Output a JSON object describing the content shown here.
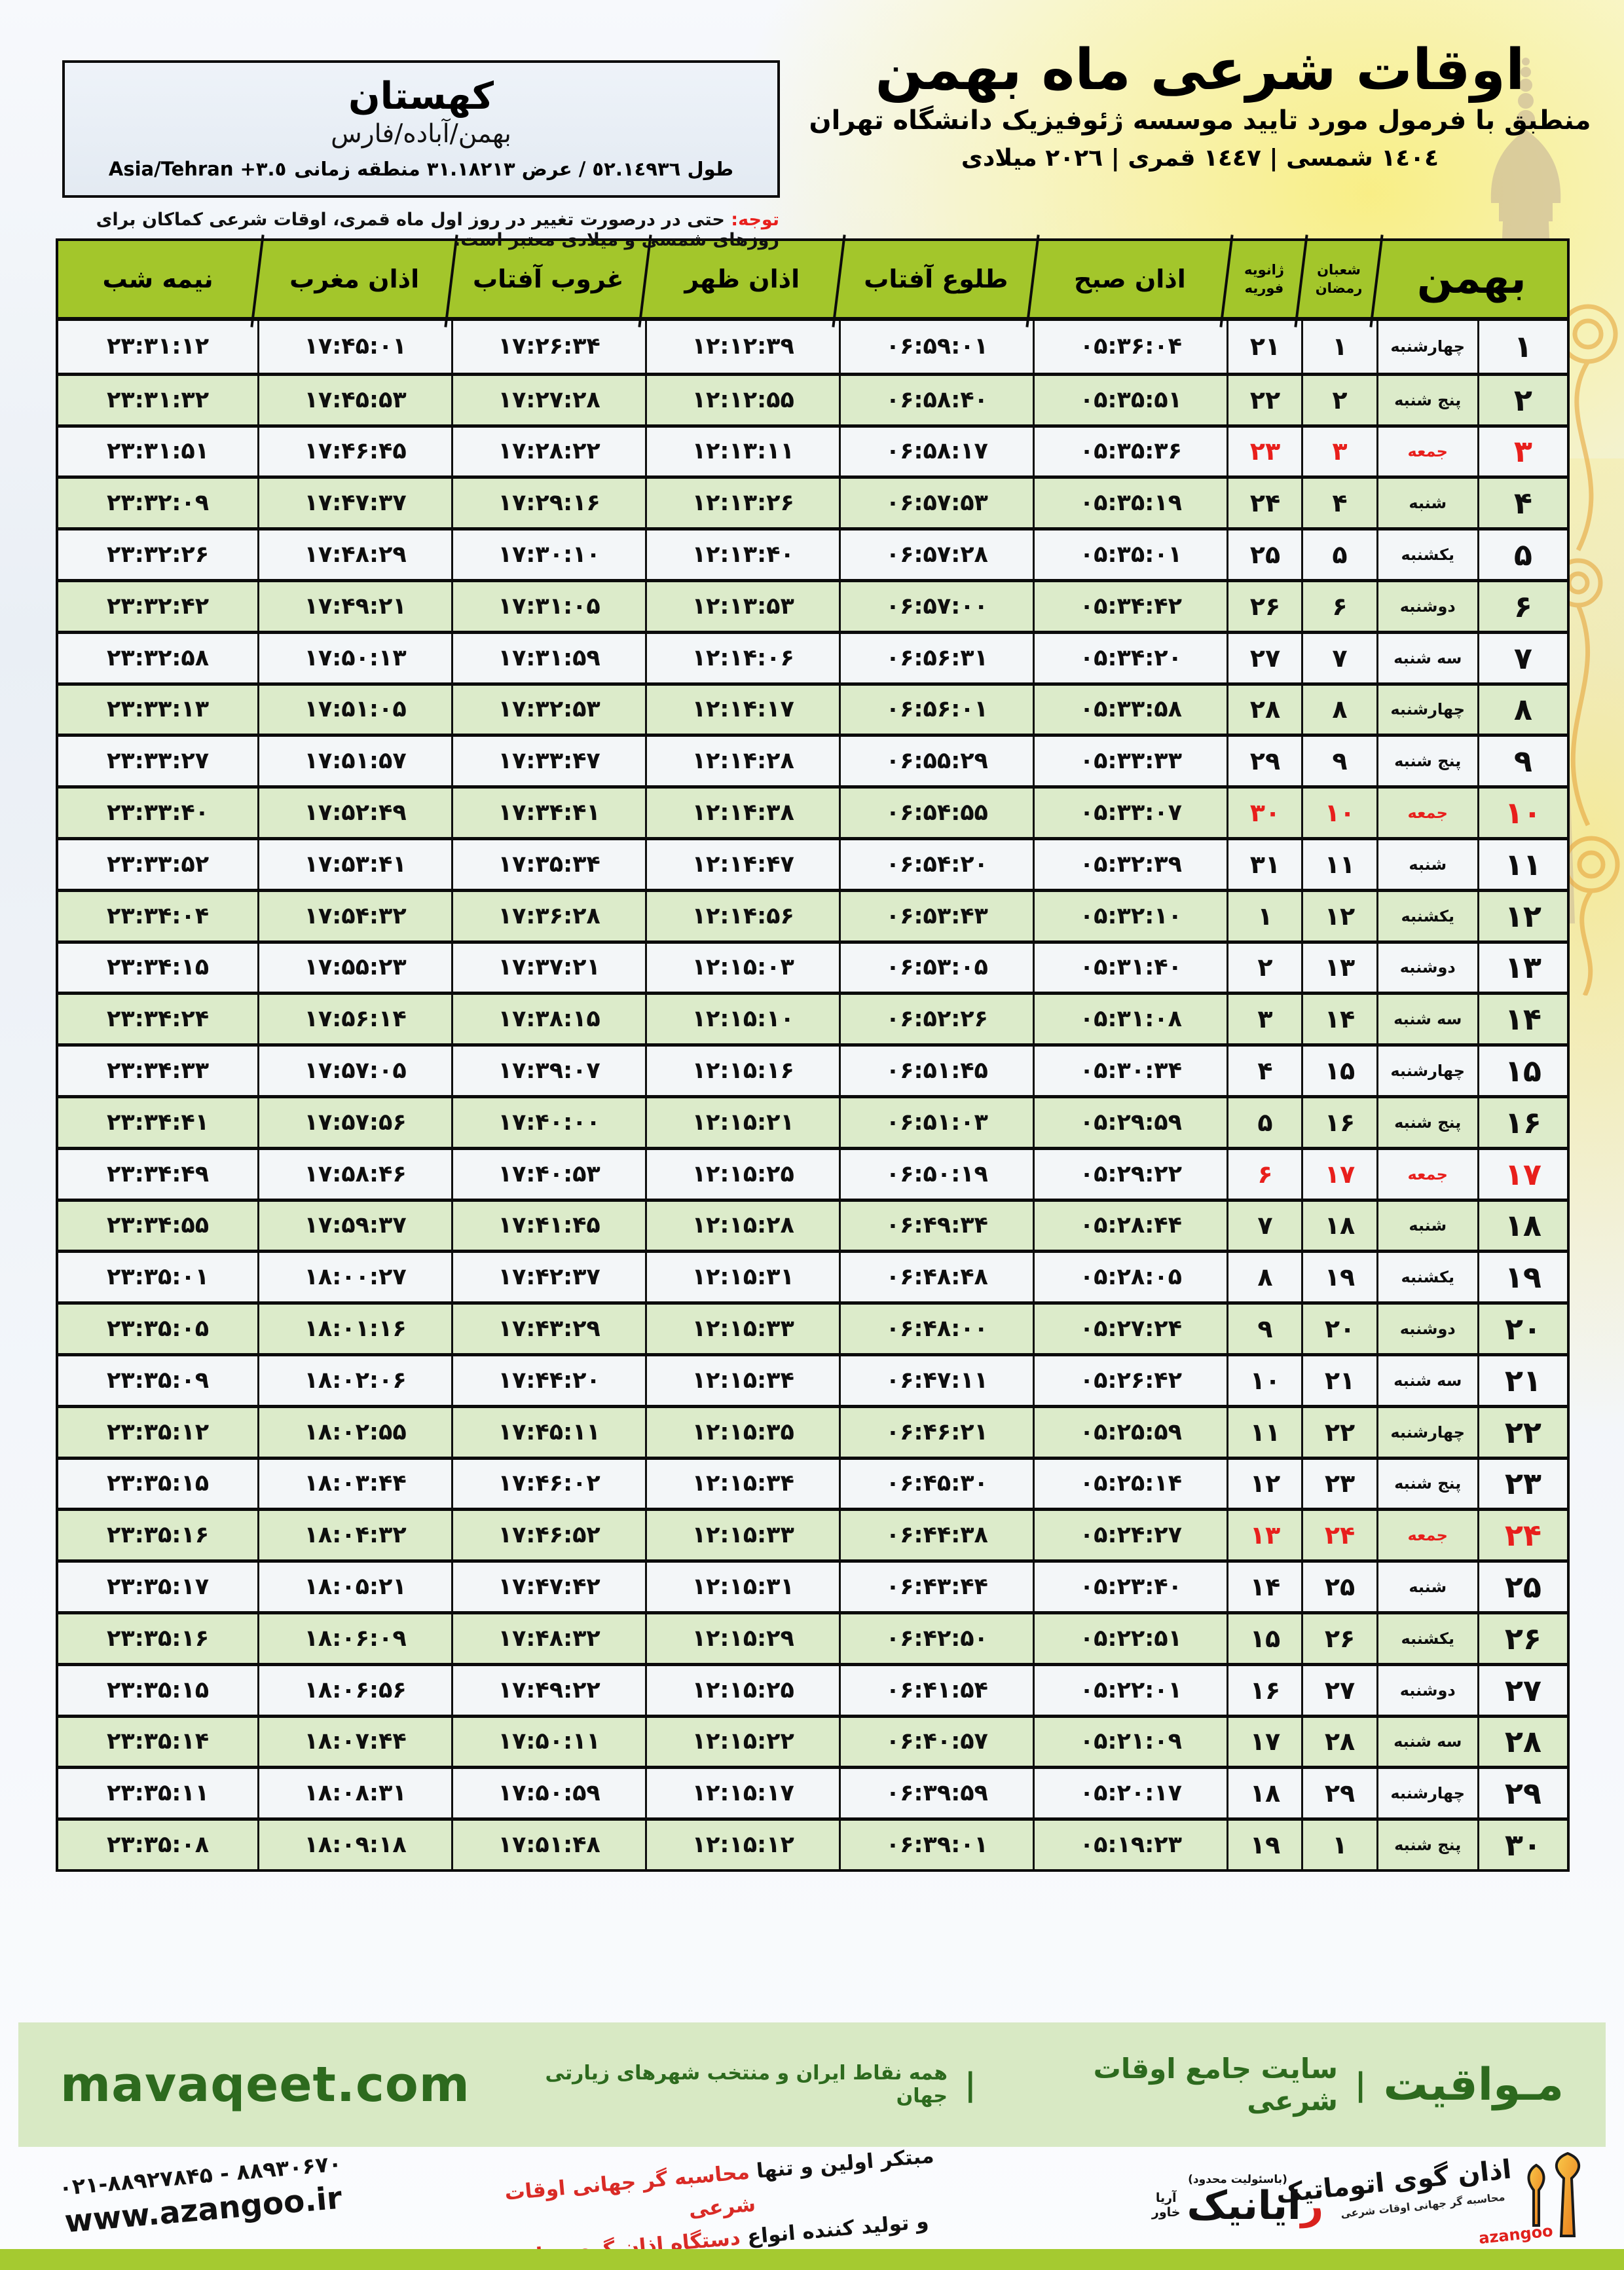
{
  "colors": {
    "header_green": "#a3c62b",
    "row_green": "#dcebca",
    "row_white": "#f3f6f8",
    "friday_red": "#e81f1c",
    "band_green": "#d8e9c4",
    "band_text": "#2d6a1e",
    "bottom_bar": "#a5ca30",
    "accent_red": "#d92b26"
  },
  "location": {
    "name": "کهستان",
    "region": "بهمن/آباده/فارس",
    "coords": "طول ٥٢.١٤٩٣٦ / عرض ٣١.١٨٢١٣ منطقه زمانی",
    "timezone": "Asia/Tehran +٣.٥"
  },
  "header": {
    "title": "اوقات شرعی ماه بهمن",
    "subtitle": "منطبق با فرمول مورد تایید موسسه ژئوفیزیک دانشگاه تهران",
    "years": "١٤٠٤ شمسی | ١٤٤٧ قمری | ٢٠٢٦ میلادی"
  },
  "note": {
    "label": "توجه:",
    "text": "حتی در درصورت تغییر در روز اول ماه قمری، اوقات شرعی کماکان برای روزهای شمسی و میلادی معتبر است."
  },
  "table": {
    "headers": {
      "midnight": "نیمه شب",
      "maghrib": "اذان مغرب",
      "sunset": "غروب آفتاب",
      "dhuhr": "اذان ظهر",
      "sunrise": "طلوع آفتاب",
      "fajr": "اذان صبح",
      "jan": "ژانویه",
      "feb": "فوریه",
      "shaban": "شعبان",
      "ramadan": "رمضان",
      "month": "بهمن"
    },
    "rows": [
      {
        "day": "۱",
        "weekday": "چهارشنبه",
        "shaban": "۱",
        "jan_feb": "۲۱",
        "fajr": "۰۵:۳۶:۰۴",
        "sunrise": "۰۶:۵۹:۰۱",
        "dhuhr": "۱۲:۱۲:۳۹",
        "sunset": "۱۷:۲۶:۳۴",
        "maghrib": "۱۷:۴۵:۰۱",
        "midnight": "۲۳:۳۱:۱۲"
      },
      {
        "day": "۲",
        "weekday": "پنج شنبه",
        "shaban": "۲",
        "jan_feb": "۲۲",
        "fajr": "۰۵:۳۵:۵۱",
        "sunrise": "۰۶:۵۸:۴۰",
        "dhuhr": "۱۲:۱۲:۵۵",
        "sunset": "۱۷:۲۷:۲۸",
        "maghrib": "۱۷:۴۵:۵۳",
        "midnight": "۲۳:۳۱:۳۲"
      },
      {
        "day": "۳",
        "weekday": "جمعه",
        "shaban": "۳",
        "jan_feb": "۲۳",
        "fajr": "۰۵:۳۵:۳۶",
        "sunrise": "۰۶:۵۸:۱۷",
        "dhuhr": "۱۲:۱۳:۱۱",
        "sunset": "۱۷:۲۸:۲۲",
        "maghrib": "۱۷:۴۶:۴۵",
        "midnight": "۲۳:۳۱:۵۱"
      },
      {
        "day": "۴",
        "weekday": "شنبه",
        "shaban": "۴",
        "jan_feb": "۲۴",
        "fajr": "۰۵:۳۵:۱۹",
        "sunrise": "۰۶:۵۷:۵۳",
        "dhuhr": "۱۲:۱۳:۲۶",
        "sunset": "۱۷:۲۹:۱۶",
        "maghrib": "۱۷:۴۷:۳۷",
        "midnight": "۲۳:۳۲:۰۹"
      },
      {
        "day": "۵",
        "weekday": "یکشنبه",
        "shaban": "۵",
        "jan_feb": "۲۵",
        "fajr": "۰۵:۳۵:۰۱",
        "sunrise": "۰۶:۵۷:۲۸",
        "dhuhr": "۱۲:۱۳:۴۰",
        "sunset": "۱۷:۳۰:۱۰",
        "maghrib": "۱۷:۴۸:۲۹",
        "midnight": "۲۳:۳۲:۲۶"
      },
      {
        "day": "۶",
        "weekday": "دوشنبه",
        "shaban": "۶",
        "jan_feb": "۲۶",
        "fajr": "۰۵:۳۴:۴۲",
        "sunrise": "۰۶:۵۷:۰۰",
        "dhuhr": "۱۲:۱۳:۵۳",
        "sunset": "۱۷:۳۱:۰۵",
        "maghrib": "۱۷:۴۹:۲۱",
        "midnight": "۲۳:۳۲:۴۲"
      },
      {
        "day": "۷",
        "weekday": "سه شنبه",
        "shaban": "۷",
        "jan_feb": "۲۷",
        "fajr": "۰۵:۳۴:۲۰",
        "sunrise": "۰۶:۵۶:۳۱",
        "dhuhr": "۱۲:۱۴:۰۶",
        "sunset": "۱۷:۳۱:۵۹",
        "maghrib": "۱۷:۵۰:۱۳",
        "midnight": "۲۳:۳۲:۵۸"
      },
      {
        "day": "۸",
        "weekday": "چهارشنبه",
        "shaban": "۸",
        "jan_feb": "۲۸",
        "fajr": "۰۵:۳۳:۵۸",
        "sunrise": "۰۶:۵۶:۰۱",
        "dhuhr": "۱۲:۱۴:۱۷",
        "sunset": "۱۷:۳۲:۵۳",
        "maghrib": "۱۷:۵۱:۰۵",
        "midnight": "۲۳:۳۳:۱۳"
      },
      {
        "day": "۹",
        "weekday": "پنج شنبه",
        "shaban": "۹",
        "jan_feb": "۲۹",
        "fajr": "۰۵:۳۳:۳۳",
        "sunrise": "۰۶:۵۵:۲۹",
        "dhuhr": "۱۲:۱۴:۲۸",
        "sunset": "۱۷:۳۳:۴۷",
        "maghrib": "۱۷:۵۱:۵۷",
        "midnight": "۲۳:۳۳:۲۷"
      },
      {
        "day": "۱۰",
        "weekday": "جمعه",
        "shaban": "۱۰",
        "jan_feb": "۳۰",
        "fajr": "۰۵:۳۳:۰۷",
        "sunrise": "۰۶:۵۴:۵۵",
        "dhuhr": "۱۲:۱۴:۳۸",
        "sunset": "۱۷:۳۴:۴۱",
        "maghrib": "۱۷:۵۲:۴۹",
        "midnight": "۲۳:۳۳:۴۰"
      },
      {
        "day": "۱۱",
        "weekday": "شنبه",
        "shaban": "۱۱",
        "jan_feb": "۳۱",
        "fajr": "۰۵:۳۲:۳۹",
        "sunrise": "۰۶:۵۴:۲۰",
        "dhuhr": "۱۲:۱۴:۴۷",
        "sunset": "۱۷:۳۵:۳۴",
        "maghrib": "۱۷:۵۳:۴۱",
        "midnight": "۲۳:۳۳:۵۲"
      },
      {
        "day": "۱۲",
        "weekday": "یکشنبه",
        "shaban": "۱۲",
        "jan_feb": "۱",
        "fajr": "۰۵:۳۲:۱۰",
        "sunrise": "۰۶:۵۳:۴۳",
        "dhuhr": "۱۲:۱۴:۵۶",
        "sunset": "۱۷:۳۶:۲۸",
        "maghrib": "۱۷:۵۴:۳۲",
        "midnight": "۲۳:۳۴:۰۴"
      },
      {
        "day": "۱۳",
        "weekday": "دوشنبه",
        "shaban": "۱۳",
        "jan_feb": "۲",
        "fajr": "۰۵:۳۱:۴۰",
        "sunrise": "۰۶:۵۳:۰۵",
        "dhuhr": "۱۲:۱۵:۰۳",
        "sunset": "۱۷:۳۷:۲۱",
        "maghrib": "۱۷:۵۵:۲۳",
        "midnight": "۲۳:۳۴:۱۵"
      },
      {
        "day": "۱۴",
        "weekday": "سه شنبه",
        "shaban": "۱۴",
        "jan_feb": "۳",
        "fajr": "۰۵:۳۱:۰۸",
        "sunrise": "۰۶:۵۲:۲۶",
        "dhuhr": "۱۲:۱۵:۱۰",
        "sunset": "۱۷:۳۸:۱۵",
        "maghrib": "۱۷:۵۶:۱۴",
        "midnight": "۲۳:۳۴:۲۴"
      },
      {
        "day": "۱۵",
        "weekday": "چهارشنبه",
        "shaban": "۱۵",
        "jan_feb": "۴",
        "fajr": "۰۵:۳۰:۳۴",
        "sunrise": "۰۶:۵۱:۴۵",
        "dhuhr": "۱۲:۱۵:۱۶",
        "sunset": "۱۷:۳۹:۰۷",
        "maghrib": "۱۷:۵۷:۰۵",
        "midnight": "۲۳:۳۴:۳۳"
      },
      {
        "day": "۱۶",
        "weekday": "پنج شنبه",
        "shaban": "۱۶",
        "jan_feb": "۵",
        "fajr": "۰۵:۲۹:۵۹",
        "sunrise": "۰۶:۵۱:۰۳",
        "dhuhr": "۱۲:۱۵:۲۱",
        "sunset": "۱۷:۴۰:۰۰",
        "maghrib": "۱۷:۵۷:۵۶",
        "midnight": "۲۳:۳۴:۴۱"
      },
      {
        "day": "۱۷",
        "weekday": "جمعه",
        "shaban": "۱۷",
        "jan_feb": "۶",
        "fajr": "۰۵:۲۹:۲۲",
        "sunrise": "۰۶:۵۰:۱۹",
        "dhuhr": "۱۲:۱۵:۲۵",
        "sunset": "۱۷:۴۰:۵۳",
        "maghrib": "۱۷:۵۸:۴۶",
        "midnight": "۲۳:۳۴:۴۹"
      },
      {
        "day": "۱۸",
        "weekday": "شنبه",
        "shaban": "۱۸",
        "jan_feb": "۷",
        "fajr": "۰۵:۲۸:۴۴",
        "sunrise": "۰۶:۴۹:۳۴",
        "dhuhr": "۱۲:۱۵:۲۸",
        "sunset": "۱۷:۴۱:۴۵",
        "maghrib": "۱۷:۵۹:۳۷",
        "midnight": "۲۳:۳۴:۵۵"
      },
      {
        "day": "۱۹",
        "weekday": "یکشنبه",
        "shaban": "۱۹",
        "jan_feb": "۸",
        "fajr": "۰۵:۲۸:۰۵",
        "sunrise": "۰۶:۴۸:۴۸",
        "dhuhr": "۱۲:۱۵:۳۱",
        "sunset": "۱۷:۴۲:۳۷",
        "maghrib": "۱۸:۰۰:۲۷",
        "midnight": "۲۳:۳۵:۰۱"
      },
      {
        "day": "۲۰",
        "weekday": "دوشنبه",
        "shaban": "۲۰",
        "jan_feb": "۹",
        "fajr": "۰۵:۲۷:۲۴",
        "sunrise": "۰۶:۴۸:۰۰",
        "dhuhr": "۱۲:۱۵:۳۳",
        "sunset": "۱۷:۴۳:۲۹",
        "maghrib": "۱۸:۰۱:۱۶",
        "midnight": "۲۳:۳۵:۰۵"
      },
      {
        "day": "۲۱",
        "weekday": "سه شنبه",
        "shaban": "۲۱",
        "jan_feb": "۱۰",
        "fajr": "۰۵:۲۶:۴۲",
        "sunrise": "۰۶:۴۷:۱۱",
        "dhuhr": "۱۲:۱۵:۳۴",
        "sunset": "۱۷:۴۴:۲۰",
        "maghrib": "۱۸:۰۲:۰۶",
        "midnight": "۲۳:۳۵:۰۹"
      },
      {
        "day": "۲۲",
        "weekday": "چهارشنبه",
        "shaban": "۲۲",
        "jan_feb": "۱۱",
        "fajr": "۰۵:۲۵:۵۹",
        "sunrise": "۰۶:۴۶:۲۱",
        "dhuhr": "۱۲:۱۵:۳۵",
        "sunset": "۱۷:۴۵:۱۱",
        "maghrib": "۱۸:۰۲:۵۵",
        "midnight": "۲۳:۳۵:۱۲"
      },
      {
        "day": "۲۳",
        "weekday": "پنج شنبه",
        "shaban": "۲۳",
        "jan_feb": "۱۲",
        "fajr": "۰۵:۲۵:۱۴",
        "sunrise": "۰۶:۴۵:۳۰",
        "dhuhr": "۱۲:۱۵:۳۴",
        "sunset": "۱۷:۴۶:۰۲",
        "maghrib": "۱۸:۰۳:۴۴",
        "midnight": "۲۳:۳۵:۱۵"
      },
      {
        "day": "۲۴",
        "weekday": "جمعه",
        "shaban": "۲۴",
        "jan_feb": "۱۳",
        "fajr": "۰۵:۲۴:۲۷",
        "sunrise": "۰۶:۴۴:۳۸",
        "dhuhr": "۱۲:۱۵:۳۳",
        "sunset": "۱۷:۴۶:۵۲",
        "maghrib": "۱۸:۰۴:۳۲",
        "midnight": "۲۳:۳۵:۱۶"
      },
      {
        "day": "۲۵",
        "weekday": "شنبه",
        "shaban": "۲۵",
        "jan_feb": "۱۴",
        "fajr": "۰۵:۲۳:۴۰",
        "sunrise": "۰۶:۴۳:۴۴",
        "dhuhr": "۱۲:۱۵:۳۱",
        "sunset": "۱۷:۴۷:۴۲",
        "maghrib": "۱۸:۰۵:۲۱",
        "midnight": "۲۳:۳۵:۱۷"
      },
      {
        "day": "۲۶",
        "weekday": "یکشنبه",
        "shaban": "۲۶",
        "jan_feb": "۱۵",
        "fajr": "۰۵:۲۲:۵۱",
        "sunrise": "۰۶:۴۲:۵۰",
        "dhuhr": "۱۲:۱۵:۲۹",
        "sunset": "۱۷:۴۸:۳۲",
        "maghrib": "۱۸:۰۶:۰۹",
        "midnight": "۲۳:۳۵:۱۶"
      },
      {
        "day": "۲۷",
        "weekday": "دوشنبه",
        "shaban": "۲۷",
        "jan_feb": "۱۶",
        "fajr": "۰۵:۲۲:۰۱",
        "sunrise": "۰۶:۴۱:۵۴",
        "dhuhr": "۱۲:۱۵:۲۵",
        "sunset": "۱۷:۴۹:۲۲",
        "maghrib": "۱۸:۰۶:۵۶",
        "midnight": "۲۳:۳۵:۱۵"
      },
      {
        "day": "۲۸",
        "weekday": "سه شنبه",
        "shaban": "۲۸",
        "jan_feb": "۱۷",
        "fajr": "۰۵:۲۱:۰۹",
        "sunrise": "۰۶:۴۰:۵۷",
        "dhuhr": "۱۲:۱۵:۲۲",
        "sunset": "۱۷:۵۰:۱۱",
        "maghrib": "۱۸:۰۷:۴۴",
        "midnight": "۲۳:۳۵:۱۴"
      },
      {
        "day": "۲۹",
        "weekday": "چهارشنبه",
        "shaban": "۲۹",
        "jan_feb": "۱۸",
        "fajr": "۰۵:۲۰:۱۷",
        "sunrise": "۰۶:۳۹:۵۹",
        "dhuhr": "۱۲:۱۵:۱۷",
        "sunset": "۱۷:۵۰:۵۹",
        "maghrib": "۱۸:۰۸:۳۱",
        "midnight": "۲۳:۳۵:۱۱"
      },
      {
        "day": "۳۰",
        "weekday": "پنج شنبه",
        "shaban": "۱",
        "jan_feb": "۱۹",
        "fajr": "۰۵:۱۹:۲۳",
        "sunrise": "۰۶:۳۹:۰۱",
        "dhuhr": "۱۲:۱۵:۱۲",
        "sunset": "۱۷:۵۱:۴۸",
        "maghrib": "۱۸:۰۹:۱۸",
        "midnight": "۲۳:۳۵:۰۸"
      }
    ]
  },
  "band": {
    "site_fa": "مـواقیت",
    "separator": "|",
    "site_desc": "سایت جامع اوقات شرعی",
    "site_scope": "همه نقاط ایران و منتخب شهرهای زیارتی جهان",
    "site_url": "mavaqeet.com"
  },
  "bottom": {
    "phones": "۰۲۱-۸۸۹۲۷۸۴۵ - ۸۸۹۳۰۶۷۰",
    "url": "www.azangoo.ir",
    "line1_black": "مبتکر اولین و تنها ",
    "line1_red": "محاسبه گر جهانی اوقات شرعی",
    "line2_black": "و تولید کننده انواع ",
    "line2_red": "دستگاه اذان گوی تمام خودکار ماهواره ای",
    "rayanik_r": "ر",
    "rayanik_rest": "ایانیک",
    "rayanik_sub1": "خاور",
    "rayanik_sub2": "آریا",
    "rayanik_note": "(باسئولیت محدود)",
    "azangoo_fa": "اذان گوی اتوماتیک",
    "azangoo_tagline": "محاسبه گر جهانی اوقات شرعی",
    "azangoo_en": "azangoo"
  }
}
